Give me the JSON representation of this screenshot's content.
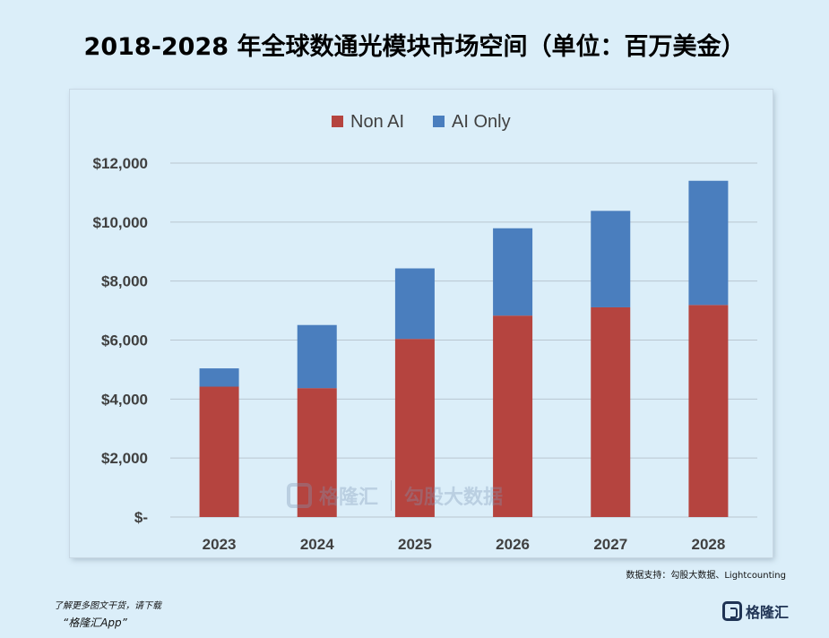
{
  "title": "2018-2028 年全球数通光模块市场空间（单位：百万美金）",
  "chart_data": {
    "type": "bar",
    "stacked": true,
    "categories": [
      "2023",
      "2024",
      "2025",
      "2026",
      "2027",
      "2028"
    ],
    "series": [
      {
        "name": "Non AI",
        "values": [
          4420,
          4370,
          6040,
          6830,
          7110,
          7190
        ],
        "color": "#b5443f"
      },
      {
        "name": "AI Only",
        "values": [
          620,
          2140,
          2390,
          2960,
          3270,
          4210
        ],
        "color": "#4a7ebe"
      }
    ],
    "yticks": [
      "$-",
      "$2,000",
      "$4,000",
      "$6,000",
      "$8,000",
      "$10,000",
      "$12,000"
    ],
    "ylim": [
      0,
      12000
    ],
    "grid": true,
    "legend_position": "top-center"
  },
  "source_note": "数据支持：勾股大数据、Lightcounting",
  "watermark": {
    "brand": "格隆汇",
    "brand_url": "www.gelonghui.com",
    "brand2": "勾股大数据",
    "brand2_url": "www.gogudata.com"
  },
  "footer": {
    "line1": "了解更多图文干货，请下载",
    "line2": "“格隆汇App”",
    "brand": "格隆汇"
  }
}
